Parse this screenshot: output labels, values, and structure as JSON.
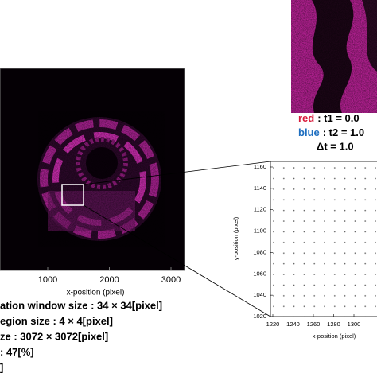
{
  "inset_caption": [
    {
      "color_word": "red",
      "text": ": t1 = 0.0"
    },
    {
      "color_word": "blue",
      "text": ": t2 = 1.0"
    },
    {
      "text": "Δt = 1.0"
    }
  ],
  "left_panel": {
    "xticks": [
      1000,
      2000,
      3000
    ],
    "xlabel": "x-position (pixel)"
  },
  "parameters": [
    "ation window size : 34 × 34[pixel]",
    "egion size : 4 × 4[pixel]",
    "ze : 3072 × 3072[pixel]",
    ": 47[%]",
    "]"
  ],
  "right_plot": {
    "xticks": [
      1220,
      1240,
      1260,
      1280,
      1300
    ],
    "yticks": [
      1020,
      1040,
      1060,
      1080,
      1100,
      1120,
      1140,
      1160
    ],
    "xlabel": "x-position (pixel)",
    "ylabel": "y-position (pixel)"
  }
}
